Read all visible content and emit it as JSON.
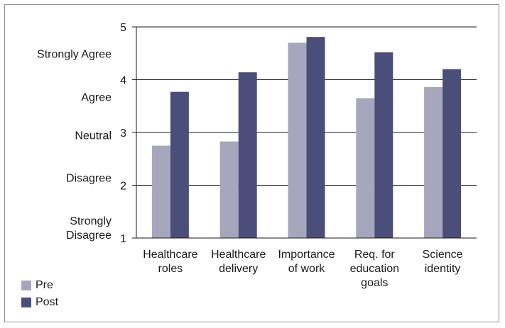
{
  "chart_data": {
    "type": "bar",
    "categories": [
      [
        "Healthcare",
        "roles"
      ],
      [
        "Healthcare",
        "delivery"
      ],
      [
        "Importance",
        "of work"
      ],
      [
        "Req. for",
        "education",
        "goals"
      ],
      [
        "Science",
        "identity"
      ]
    ],
    "series": [
      {
        "name": "Pre",
        "values": [
          2.75,
          2.83,
          4.7,
          3.65,
          3.86
        ],
        "color": "#a6a6bc"
      },
      {
        "name": "Post",
        "values": [
          3.77,
          4.14,
          4.81,
          4.52,
          4.2
        ],
        "color": "#4a4e78"
      }
    ],
    "ylim": [
      1,
      5
    ],
    "yticks": [
      "1",
      "2",
      "3",
      "4",
      "5"
    ],
    "likert_labels": [
      {
        "text": [
          "Strongly",
          "Disagree"
        ],
        "level": 1.2
      },
      {
        "text": [
          "Disagree"
        ],
        "level": 2.15
      },
      {
        "text": [
          "Neutral"
        ],
        "level": 2.95
      },
      {
        "text": [
          "Agree"
        ],
        "level": 3.68
      },
      {
        "text": [
          "Strongly Agree"
        ],
        "level": 4.5
      }
    ],
    "grid": true,
    "legend_position": "bottom-left"
  }
}
